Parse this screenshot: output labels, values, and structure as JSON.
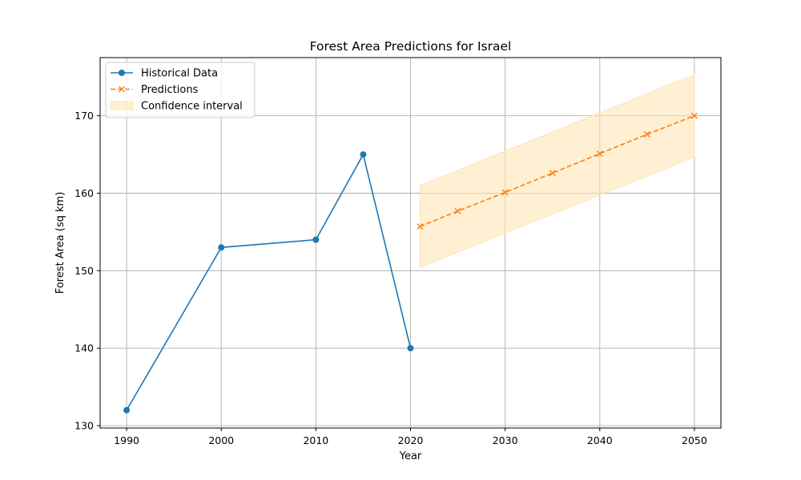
{
  "chart_data": {
    "type": "line",
    "title": "Forest Area Predictions for Israel",
    "xlabel": "Year",
    "ylabel": "Forest Area (sq km)",
    "xlim": [
      1987.2,
      2052.8
    ],
    "ylim": [
      129.7,
      177.5
    ],
    "xticks": [
      1990,
      2000,
      2010,
      2020,
      2030,
      2040,
      2050
    ],
    "yticks": [
      130,
      140,
      150,
      160,
      170
    ],
    "grid": true,
    "legend_position": "top-left",
    "series": [
      {
        "name": "Historical Data",
        "style": "solid",
        "marker": "circle",
        "color": "#1f77b4",
        "x": [
          1990,
          2000,
          2010,
          2015,
          2020
        ],
        "y": [
          132,
          153,
          154,
          165,
          140
        ]
      },
      {
        "name": "Predictions",
        "style": "dashed",
        "marker": "x",
        "color": "#ff7f0e",
        "x": [
          2021,
          2025,
          2030,
          2035,
          2040,
          2045,
          2050
        ],
        "y": [
          155.7,
          157.7,
          160.1,
          162.6,
          165.1,
          167.6,
          170.0
        ]
      }
    ],
    "confidence_interval": {
      "name": "Confidence interval",
      "color": "#ffe4b5",
      "x": [
        2021,
        2050
      ],
      "lower": [
        150.4,
        164.7
      ],
      "upper": [
        161.0,
        175.3
      ]
    }
  }
}
